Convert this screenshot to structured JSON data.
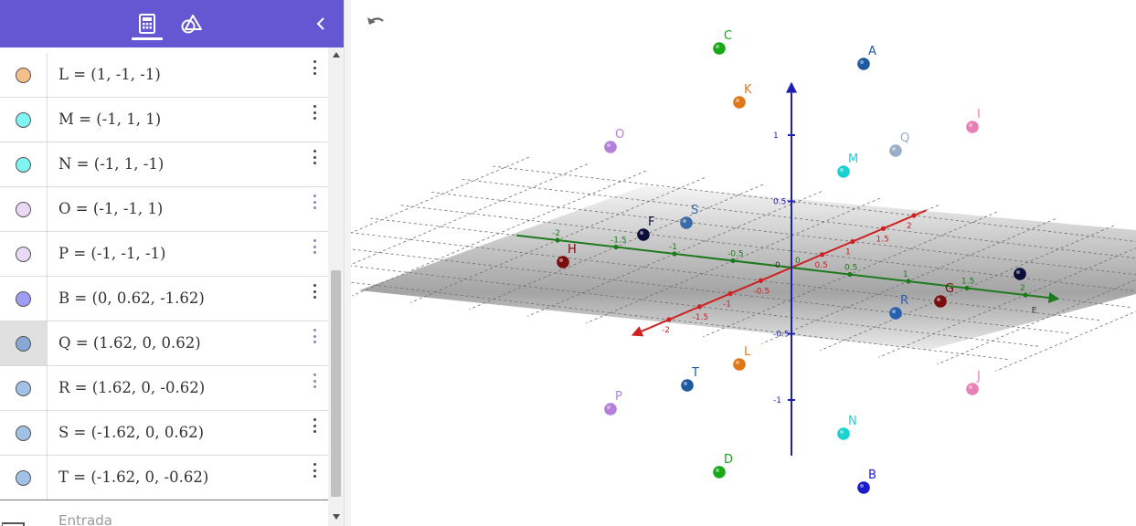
{
  "toolbar": {
    "tabs": [
      {
        "name": "algebra",
        "icon": "calculator-icon",
        "active": true
      },
      {
        "name": "tools",
        "icon": "geometry-tools-icon",
        "active": false
      }
    ],
    "collapse_icon": "chevron-left-icon"
  },
  "algebra": {
    "rows": [
      {
        "label": "L",
        "expr": "L = (1, -1, -1)",
        "color": "#f5bf8b",
        "selected": false
      },
      {
        "label": "M",
        "expr": "M = (-1, 1, 1)",
        "color": "#80f3f3",
        "selected": false
      },
      {
        "label": "N",
        "expr": "N = (-1, 1, -1)",
        "color": "#80f3f3",
        "selected": false
      },
      {
        "label": "O",
        "expr": "O = (-1, -1, 1)",
        "color": "#ead8f7",
        "selected": false
      },
      {
        "label": "P",
        "expr": "P = (-1, -1, -1)",
        "color": "#ead8f7",
        "selected": false
      },
      {
        "label": "B",
        "expr": "B = (0, 0.62, -1.62)",
        "color": "#9e9ef6",
        "selected": false
      },
      {
        "label": "Q",
        "expr": "Q = (1.62, 0, 0.62)",
        "color": "#86a8d4",
        "selected": true
      },
      {
        "label": "R",
        "expr": "R = (1.62, 0, -0.62)",
        "color": "#a1c1e6",
        "selected": false
      },
      {
        "label": "S",
        "expr": "S = (-1.62, 0, 0.62)",
        "color": "#a1c1e6",
        "selected": false
      },
      {
        "label": "T",
        "expr": "T = (-1.62, 0, -0.62)",
        "color": "#a1c1e6",
        "selected": false
      }
    ],
    "input_placeholder": "Entrada"
  },
  "view3d": {
    "axes": {
      "x": {
        "color": "#cc2222",
        "ticks": [
          "-2",
          "-1.5",
          "-1",
          "-0.5",
          "0.5",
          "1",
          "1.5",
          "2"
        ]
      },
      "y": {
        "color": "#1d7a1d",
        "label": "E",
        "ticks": [
          "-2",
          "-1.5",
          "-1",
          "-0.5",
          "0",
          "0.5",
          "1",
          "1.5",
          "2"
        ]
      },
      "z": {
        "color": "#1e1eb4",
        "ticks": [
          "1",
          "0.5",
          "-0.5",
          "-1"
        ]
      }
    },
    "origin_label": "0",
    "points": [
      {
        "name": "A",
        "color": "#1f5aa0"
      },
      {
        "name": "B",
        "color": "#1b1bcc"
      },
      {
        "name": "C",
        "color": "#18a818"
      },
      {
        "name": "D",
        "color": "#18a818"
      },
      {
        "name": "F",
        "color": "#0d0d3a"
      },
      {
        "name": "G",
        "color": "#7a0d0d"
      },
      {
        "name": "H",
        "color": "#7a0d0d"
      },
      {
        "name": "I",
        "color": "#e87fb5"
      },
      {
        "name": "J",
        "color": "#e87fb5"
      },
      {
        "name": "K",
        "color": "#e0781a"
      },
      {
        "name": "L",
        "color": "#e0781a"
      },
      {
        "name": "M",
        "color": "#1bd2d2"
      },
      {
        "name": "N",
        "color": "#1bd2d2"
      },
      {
        "name": "O",
        "color": "#b37fdb"
      },
      {
        "name": "P",
        "color": "#b37fdb"
      },
      {
        "name": "Q",
        "color": "#99aec7"
      },
      {
        "name": "R",
        "color": "#2a5fb0"
      },
      {
        "name": "S",
        "color": "#3a6aa8"
      },
      {
        "name": "T",
        "color": "#1f5aa0"
      },
      {
        "name": "",
        "color": "#0d0d3a"
      }
    ]
  },
  "undo_icon": "undo-icon"
}
